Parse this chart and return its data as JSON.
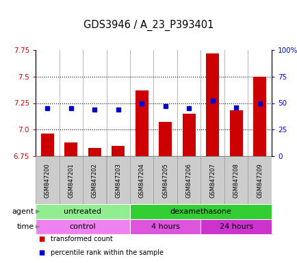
{
  "title": "GDS3946 / A_23_P393401",
  "samples": [
    "GSM847200",
    "GSM847201",
    "GSM847202",
    "GSM847203",
    "GSM847204",
    "GSM847205",
    "GSM847206",
    "GSM847207",
    "GSM847208",
    "GSM847209"
  ],
  "bar_values": [
    6.96,
    6.88,
    6.83,
    6.85,
    7.37,
    7.07,
    7.15,
    7.72,
    7.18,
    7.5
  ],
  "percentile_values": [
    45,
    45,
    44,
    44,
    50,
    47,
    45,
    52,
    46,
    50
  ],
  "ylim_left": [
    6.75,
    7.75
  ],
  "ylim_right": [
    0,
    100
  ],
  "yticks_left": [
    6.75,
    7.0,
    7.25,
    7.5,
    7.75
  ],
  "yticks_right": [
    0,
    25,
    50,
    75,
    100
  ],
  "bar_color": "#cc0000",
  "dot_color": "#0000cc",
  "agent_groups": [
    {
      "label": "untreated",
      "start": 0,
      "end": 4,
      "color": "#90EE90"
    },
    {
      "label": "dexamethasone",
      "start": 4,
      "end": 10,
      "color": "#32CD32"
    }
  ],
  "time_groups": [
    {
      "label": "control",
      "start": 0,
      "end": 4,
      "color": "#EE82EE"
    },
    {
      "label": "4 hours",
      "start": 4,
      "end": 7,
      "color": "#DD66DD"
    },
    {
      "label": "24 hours",
      "start": 7,
      "end": 10,
      "color": "#CC44CC"
    }
  ],
  "legend_items": [
    {
      "label": "transformed count",
      "color": "#cc0000"
    },
    {
      "label": "percentile rank within the sample",
      "color": "#0000cc"
    }
  ],
  "grid_yticks": [
    7.0,
    7.25,
    7.5
  ],
  "fig_width": 4.35,
  "fig_height": 3.84,
  "dpi": 100
}
